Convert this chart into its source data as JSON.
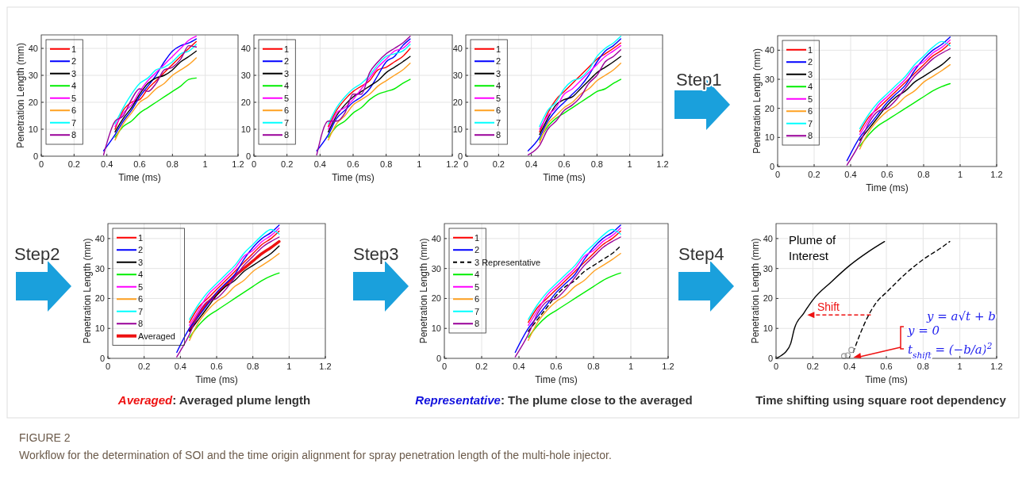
{
  "chart_data": [
    {
      "type": "line",
      "xlabel": "Time (ms)",
      "ylabel": "Penetration Length (mm)",
      "xlim": [
        0,
        1.2
      ],
      "xticks": [
        0,
        0.2,
        0.4,
        0.6,
        0.8,
        1,
        1.2
      ],
      "ylim": [
        0,
        45
      ],
      "yticks": [
        0,
        10,
        20,
        30,
        40
      ],
      "grid": true,
      "legend": "top left",
      "x": [
        0.38,
        0.45,
        0.5,
        0.55,
        0.6,
        0.65,
        0.7,
        0.75,
        0.8,
        0.85,
        0.9,
        0.945
      ],
      "series": [
        {
          "name": "1",
          "color": "#ff0000",
          "values": [
            null,
            10,
            17,
            20,
            21,
            25,
            28,
            31,
            34,
            37,
            40,
            42.5
          ]
        },
        {
          "name": "2",
          "color": "#0000ff",
          "values": [
            2,
            8,
            13,
            17,
            22,
            26,
            30,
            35,
            39,
            41,
            42,
            43.5
          ]
        },
        {
          "name": "3",
          "color": "#000000",
          "values": [
            null,
            9,
            14,
            18,
            23,
            27,
            29,
            30,
            32,
            35,
            37,
            39
          ]
        },
        {
          "name": "4",
          "color": "#00ee00",
          "values": [
            null,
            7,
            11,
            13,
            16,
            18,
            20,
            22,
            24,
            26,
            28.5,
            29
          ]
        },
        {
          "name": "5",
          "color": "#ff00ff",
          "values": [
            null,
            11,
            16,
            19,
            24,
            28,
            31,
            34,
            37,
            40,
            43,
            44.5
          ]
        },
        {
          "name": "6",
          "color": "#ffa020",
          "values": [
            null,
            6,
            12,
            16,
            20,
            22,
            25,
            27,
            30,
            32,
            34,
            36.5
          ]
        },
        {
          "name": "7",
          "color": "#00ffff",
          "values": [
            null,
            12,
            18,
            23,
            27,
            29,
            32,
            33,
            35,
            38,
            39,
            41.5
          ]
        },
        {
          "name": "8",
          "color": "#990099",
          "values": [
            0.5,
            13,
            15,
            21,
            25,
            24,
            27,
            32,
            33,
            36,
            41,
            40.5
          ]
        }
      ]
    },
    {
      "type": "line",
      "xlabel": "Time (ms)",
      "xlim": [
        0,
        1.2
      ],
      "xticks": [
        0,
        0.2,
        0.4,
        0.6,
        0.8,
        1,
        1.2
      ],
      "ylim": [
        0,
        45
      ],
      "yticks": [
        0,
        10,
        20,
        30,
        40
      ],
      "grid": true,
      "legend": "top left",
      "x": [
        0.38,
        0.45,
        0.5,
        0.55,
        0.6,
        0.65,
        0.7,
        0.75,
        0.8,
        0.85,
        0.9,
        0.945
      ],
      "series": [
        {
          "name": "1",
          "color": "#ff0000",
          "values": [
            null,
            11,
            17,
            21,
            24,
            26,
            28,
            32,
            33,
            35,
            37,
            40
          ]
        },
        {
          "name": "2",
          "color": "#0000ff",
          "values": [
            2,
            8,
            14,
            17,
            20,
            22,
            25,
            30,
            35,
            37,
            41,
            43.5
          ]
        },
        {
          "name": "3",
          "color": "#000000",
          "values": [
            null,
            9,
            15,
            19,
            22,
            24,
            26,
            28,
            31,
            33,
            35,
            37
          ]
        },
        {
          "name": "4",
          "color": "#00ee00",
          "values": [
            null,
            7,
            11,
            13,
            16,
            18,
            21,
            23,
            24,
            25,
            27,
            28.5
          ]
        },
        {
          "name": "5",
          "color": "#ff00ff",
          "values": [
            null,
            10,
            16,
            18,
            21,
            25,
            29,
            33,
            36,
            39,
            40,
            42.5
          ]
        },
        {
          "name": "6",
          "color": "#ffa020",
          "values": [
            null,
            6,
            12,
            15,
            19,
            21,
            23,
            26,
            28,
            30,
            32,
            34.5
          ]
        },
        {
          "name": "7",
          "color": "#00ffff",
          "values": [
            null,
            12,
            18,
            22,
            25,
            27,
            30,
            34,
            37,
            38,
            39,
            41.5
          ]
        },
        {
          "name": "8",
          "color": "#990099",
          "values": [
            0.5,
            13,
            13,
            16,
            23,
            23,
            31,
            35,
            38,
            40,
            42,
            44.5
          ]
        }
      ]
    },
    {
      "type": "line",
      "xlabel": "Time (ms)",
      "xlim": [
        0,
        1.2
      ],
      "xticks": [
        0,
        0.2,
        0.4,
        0.6,
        0.8,
        1,
        1.2
      ],
      "ylim": [
        0,
        45
      ],
      "yticks": [
        0,
        10,
        20,
        30,
        40
      ],
      "grid": true,
      "legend": "top left",
      "x": [
        0.38,
        0.45,
        0.5,
        0.55,
        0.6,
        0.65,
        0.7,
        0.75,
        0.8,
        0.85,
        0.9,
        0.945
      ],
      "series": [
        {
          "name": "1",
          "color": "#ff0000",
          "values": [
            null,
            9,
            16,
            21,
            24,
            27,
            30,
            33,
            36,
            38,
            40,
            42
          ]
        },
        {
          "name": "2",
          "color": "#0000ff",
          "values": [
            2,
            7,
            13,
            17,
            20,
            23,
            26,
            30,
            35,
            39,
            41,
            43.5
          ]
        },
        {
          "name": "3",
          "color": "#000000",
          "values": [
            null,
            8,
            14,
            19,
            21,
            22,
            25,
            28,
            31,
            33,
            35,
            37
          ]
        },
        {
          "name": "4",
          "color": "#00ee00",
          "values": [
            null,
            6,
            11,
            14,
            16,
            18,
            20,
            22,
            24,
            25,
            27,
            28.5
          ]
        },
        {
          "name": "5",
          "color": "#ff00ff",
          "values": [
            null,
            10,
            15,
            18,
            23,
            25,
            28,
            31,
            34,
            37,
            39,
            41
          ]
        },
        {
          "name": "6",
          "color": "#ffa020",
          "values": [
            null,
            5,
            12,
            15,
            18,
            20,
            23,
            25,
            28,
            30,
            32,
            34.5
          ]
        },
        {
          "name": "7",
          "color": "#00ffff",
          "values": [
            null,
            11,
            17,
            20,
            25,
            28,
            29,
            32,
            37,
            40,
            42,
            44.5
          ]
        },
        {
          "name": "8",
          "color": "#990099",
          "values": [
            0.5,
            4,
            10,
            13,
            17,
            19,
            22,
            27,
            30,
            35,
            37,
            39.5
          ]
        }
      ]
    },
    {
      "type": "line",
      "xlabel": "Time (ms)",
      "ylabel": "Penetration Length (mm)",
      "xlim": [
        0,
        1.2
      ],
      "xticks": [
        0,
        0.2,
        0.4,
        0.6,
        0.8,
        1,
        1.2
      ],
      "ylim": [
        0,
        45
      ],
      "yticks": [
        0,
        10,
        20,
        30,
        40
      ],
      "grid": true,
      "legend": "top left",
      "annotations": [
        "Step1"
      ],
      "x": [
        0.38,
        0.45,
        0.5,
        0.55,
        0.6,
        0.65,
        0.7,
        0.75,
        0.8,
        0.85,
        0.9,
        0.945
      ],
      "series": [
        {
          "name": "1",
          "color": "#ff0000",
          "values": [
            null,
            12,
            17,
            20,
            23,
            26,
            29,
            32,
            35,
            38,
            40,
            42.5
          ]
        },
        {
          "name": "2",
          "color": "#0000ff",
          "values": [
            2,
            10,
            14,
            18,
            22,
            25,
            28,
            33,
            37,
            40,
            42,
            44.5
          ]
        },
        {
          "name": "3",
          "color": "#000000",
          "values": [
            null,
            9,
            13,
            17,
            21,
            24,
            26,
            29,
            31,
            33,
            35,
            37.5
          ]
        },
        {
          "name": "4",
          "color": "#00ee00",
          "values": [
            null,
            7,
            11,
            14,
            16,
            18,
            20,
            22,
            24,
            26,
            27.5,
            28.5
          ]
        },
        {
          "name": "5",
          "color": "#ff00ff",
          "values": [
            null,
            11,
            16,
            21,
            24,
            27,
            30,
            34,
            36,
            39,
            41,
            43.5
          ]
        },
        {
          "name": "6",
          "color": "#ffa020",
          "values": [
            null,
            6,
            12,
            16,
            19,
            21,
            24,
            26,
            29,
            31,
            33,
            35
          ]
        },
        {
          "name": "7",
          "color": "#00ffff",
          "values": [
            null,
            13,
            18,
            22,
            25,
            28,
            31,
            35,
            38,
            41,
            43,
            41.5
          ]
        },
        {
          "name": "8",
          "color": "#990099",
          "values": [
            0.5,
            8,
            15,
            19,
            20,
            23,
            27,
            31,
            34,
            37,
            39,
            40.5
          ]
        }
      ]
    },
    {
      "type": "line",
      "xlabel": "Time (ms)",
      "ylabel": "Penetration Length (mm)",
      "xlim": [
        0,
        1.2
      ],
      "xticks": [
        0,
        0.2,
        0.4,
        0.6,
        0.8,
        1,
        1.2
      ],
      "ylim": [
        0,
        45
      ],
      "yticks": [
        0,
        10,
        20,
        30,
        40
      ],
      "grid": true,
      "legend": "top left",
      "annotations": [
        "Step2",
        "Averaged: Averaged plume length"
      ],
      "x": [
        0.38,
        0.45,
        0.5,
        0.55,
        0.6,
        0.65,
        0.7,
        0.75,
        0.8,
        0.85,
        0.9,
        0.945
      ],
      "series": [
        {
          "name": "1",
          "color": "#ff0000",
          "values": [
            null,
            12,
            17,
            20,
            23,
            26,
            29,
            32,
            35,
            38,
            40,
            42.5
          ]
        },
        {
          "name": "2",
          "color": "#0000ff",
          "values": [
            2,
            10,
            14,
            18,
            22,
            25,
            28,
            33,
            37,
            40,
            42,
            44.5
          ]
        },
        {
          "name": "3",
          "color": "#000000",
          "values": [
            null,
            9,
            13,
            17,
            21,
            24,
            26,
            29,
            31,
            33,
            35,
            37.5
          ]
        },
        {
          "name": "4",
          "color": "#00ee00",
          "values": [
            null,
            7,
            11,
            14,
            16,
            18,
            20,
            22,
            24,
            26,
            27.5,
            28.5
          ]
        },
        {
          "name": "5",
          "color": "#ff00ff",
          "values": [
            null,
            11,
            16,
            21,
            24,
            27,
            30,
            34,
            36,
            39,
            41,
            43.5
          ]
        },
        {
          "name": "6",
          "color": "#ffa020",
          "values": [
            null,
            6,
            12,
            16,
            19,
            21,
            24,
            26,
            29,
            31,
            33,
            35
          ]
        },
        {
          "name": "7",
          "color": "#00ffff",
          "values": [
            null,
            13,
            18,
            22,
            25,
            28,
            31,
            35,
            38,
            41,
            43,
            41.5
          ]
        },
        {
          "name": "8",
          "color": "#990099",
          "values": [
            0.5,
            8,
            15,
            19,
            20,
            23,
            27,
            31,
            34,
            37,
            39,
            40.5
          ]
        },
        {
          "name": "Averaged",
          "color": "#ee1111",
          "values": [
            null,
            9.5,
            14.5,
            18.5,
            21.5,
            24.5,
            27.5,
            30,
            32.5,
            35,
            37,
            39
          ]
        }
      ]
    },
    {
      "type": "line",
      "xlabel": "Time (ms)",
      "ylabel": "Penetration Length (mm)",
      "xlim": [
        0,
        1.2
      ],
      "xticks": [
        0,
        0.2,
        0.4,
        0.6,
        0.8,
        1,
        1.2
      ],
      "ylim": [
        0,
        45
      ],
      "yticks": [
        0,
        10,
        20,
        30,
        40
      ],
      "grid": true,
      "legend": "top left",
      "annotations": [
        "Step3",
        "Representative: The plume close to the averaged"
      ],
      "x": [
        0.38,
        0.45,
        0.5,
        0.55,
        0.6,
        0.65,
        0.7,
        0.75,
        0.8,
        0.85,
        0.9,
        0.945
      ],
      "series": [
        {
          "name": "1",
          "color": "#ff0000",
          "values": [
            null,
            12,
            17,
            20,
            23,
            26,
            29,
            32,
            35,
            38,
            40,
            42.5
          ]
        },
        {
          "name": "2",
          "color": "#0000ff",
          "values": [
            2,
            10,
            14,
            18,
            22,
            25,
            28,
            33,
            37,
            40,
            42,
            44.5
          ]
        },
        {
          "name": "3 Representative",
          "color": "#000000",
          "line_style": "dashed",
          "values": [
            null,
            9,
            13,
            17,
            21,
            24,
            26,
            29,
            31,
            33,
            35,
            37.5
          ]
        },
        {
          "name": "4",
          "color": "#00ee00",
          "values": [
            null,
            7,
            11,
            14,
            16,
            18,
            20,
            22,
            24,
            26,
            27.5,
            28.5
          ]
        },
        {
          "name": "5",
          "color": "#ff00ff",
          "values": [
            null,
            11,
            16,
            21,
            24,
            27,
            30,
            34,
            36,
            39,
            41,
            43.5
          ]
        },
        {
          "name": "6",
          "color": "#ffa020",
          "values": [
            null,
            6,
            12,
            16,
            19,
            21,
            24,
            26,
            29,
            31,
            33,
            35
          ]
        },
        {
          "name": "7",
          "color": "#00ffff",
          "values": [
            null,
            13,
            18,
            22,
            25,
            28,
            31,
            35,
            38,
            41,
            43,
            41.5
          ]
        },
        {
          "name": "8",
          "color": "#990099",
          "values": [
            0.5,
            8,
            15,
            19,
            20,
            23,
            27,
            31,
            34,
            37,
            39,
            40.5
          ]
        }
      ]
    },
    {
      "type": "line",
      "xlabel": "Time (ms)",
      "ylabel": "Penetration Length (mm)",
      "xlim": [
        0,
        1.2
      ],
      "xticks": [
        0,
        0.2,
        0.4,
        0.6,
        0.8,
        1,
        1.2
      ],
      "ylim": [
        0,
        45
      ],
      "yticks": [
        0,
        10,
        20,
        30,
        40
      ],
      "grid": true,
      "annotations": [
        "Step4",
        "Plume of Interest",
        {
          "text": "Shift",
          "x": 0.17,
          "y": 14.5
        },
        "y = a√t + b",
        "y = 0",
        "t$_{shift}$ = (−b/a)$^{2}$",
        "Time shifting using square root dependency",
        "FIGURE 2",
        "Workflow for the determination of SOI and the time origin alignment for spray penetration length of the multi-hole injector."
      ],
      "series": [
        {
          "color": "#000000",
          "x": [
            0,
            0.03,
            0.05,
            0.08,
            0.1,
            0.15,
            0.2,
            0.3,
            0.4,
            0.5,
            0.59
          ],
          "values": [
            0,
            1,
            2,
            5,
            10,
            15,
            19.5,
            25.5,
            31,
            35.5,
            39
          ]
        },
        {
          "color": "#000000",
          "line_style": "dashed",
          "x": [
            0.42,
            0.45,
            0.5,
            0.55,
            0.6,
            0.7,
            0.8,
            0.9,
            0.945
          ],
          "values": [
            2,
            7,
            14,
            19,
            22,
            28,
            33,
            37,
            39
          ]
        },
        {
          "type": "scatter",
          "marker": "circle",
          "color": "#999999",
          "x": [
            0.37,
            0.39,
            0.41
          ],
          "values": [
            0.8,
            1,
            2.8
          ]
        }
      ]
    }
  ]
}
